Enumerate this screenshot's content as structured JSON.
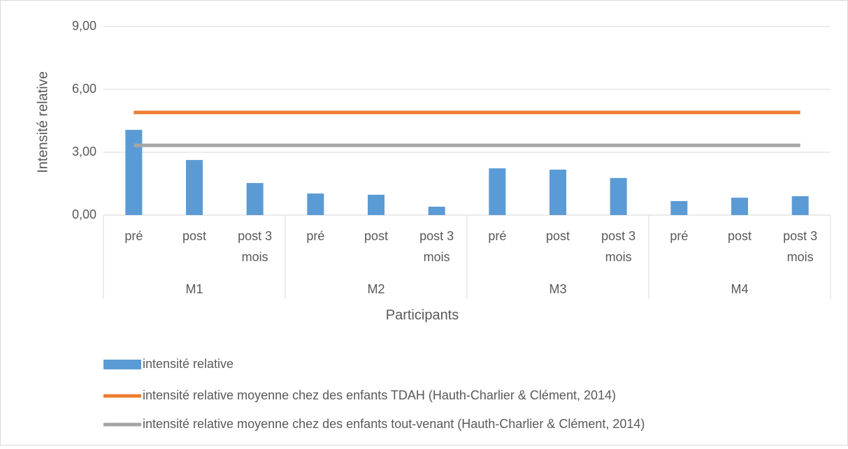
{
  "chart_data": {
    "type": "bar",
    "y_label": "Intensité relative",
    "x_label": "Participants",
    "categories": [
      "pré",
      "post",
      "post 3 mois",
      "pré",
      "post",
      "post 3 mois",
      "pré",
      "post",
      "post 3 mois",
      "pré",
      "post",
      "post 3 mois"
    ],
    "groups": [
      "M1",
      "M2",
      "M3",
      "M4"
    ],
    "series": [
      {
        "name": "intensité relative",
        "color": "#5b9bd5",
        "values": [
          4.07,
          2.63,
          1.53,
          1.03,
          0.97,
          0.4,
          2.23,
          2.17,
          1.77,
          0.67,
          0.83,
          0.9
        ]
      }
    ],
    "reference_lines": [
      {
        "name": "intensité relative moyenne chez des enfants TDAH (Hauth-Charlier & Clément, 2014)",
        "color": "#ed7d31",
        "value": 4.9
      },
      {
        "name": "intensité relative moyenne chez des enfants tout-venant (Hauth-Charlier & Clément, 2014)",
        "color": "#a5a5a5",
        "value": 3.33
      }
    ],
    "ylim": [
      0,
      9
    ],
    "yticks": [
      {
        "value": 0,
        "label": "0,00"
      },
      {
        "value": 3,
        "label": "3,00"
      },
      {
        "value": 6,
        "label": "6,00"
      },
      {
        "value": 9,
        "label": "9,00"
      }
    ],
    "grid": true
  }
}
